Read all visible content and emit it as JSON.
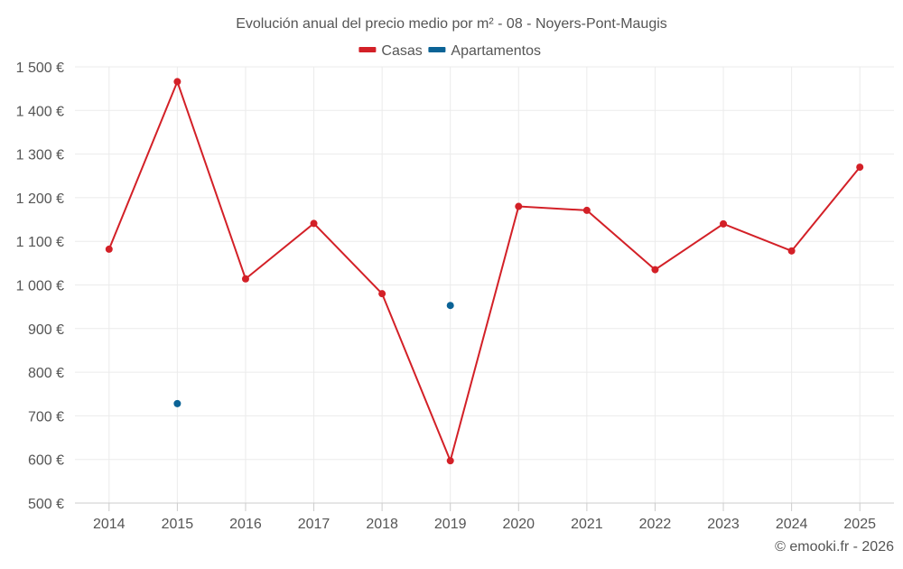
{
  "chart_data": {
    "type": "line",
    "title": "Evolución anual del precio medio por m² - 08 - Noyers-Pont-Maugis",
    "categories": [
      "2014",
      "2015",
      "2016",
      "2017",
      "2018",
      "2019",
      "2020",
      "2021",
      "2022",
      "2023",
      "2024",
      "2025"
    ],
    "series": [
      {
        "name": "Casas",
        "color": "#d32027",
        "mode": "line",
        "values": [
          1082,
          1466,
          1014,
          1141,
          980,
          597,
          1180,
          1171,
          1035,
          1140,
          1078,
          1270
        ]
      },
      {
        "name": "Apartamentos",
        "color": "#0b6396",
        "mode": "points",
        "values": [
          null,
          728,
          null,
          null,
          null,
          953,
          null,
          null,
          null,
          null,
          null,
          null
        ]
      }
    ],
    "y_ticks": [
      "1 500 €",
      "1 400 €",
      "1 300 €",
      "1 200 €",
      "1 100 €",
      "1 000 €",
      "900 €",
      "800 €",
      "700 €",
      "600 €",
      "500 €"
    ],
    "ylim": [
      500,
      1500
    ],
    "xlabel": "",
    "ylabel": "",
    "grid": true,
    "legend_position": "top-center"
  },
  "credit": "© emooki.fr - 2026",
  "colors": {
    "grid": "#ebebeb",
    "axis": "#cccccc",
    "text": "#555555"
  }
}
